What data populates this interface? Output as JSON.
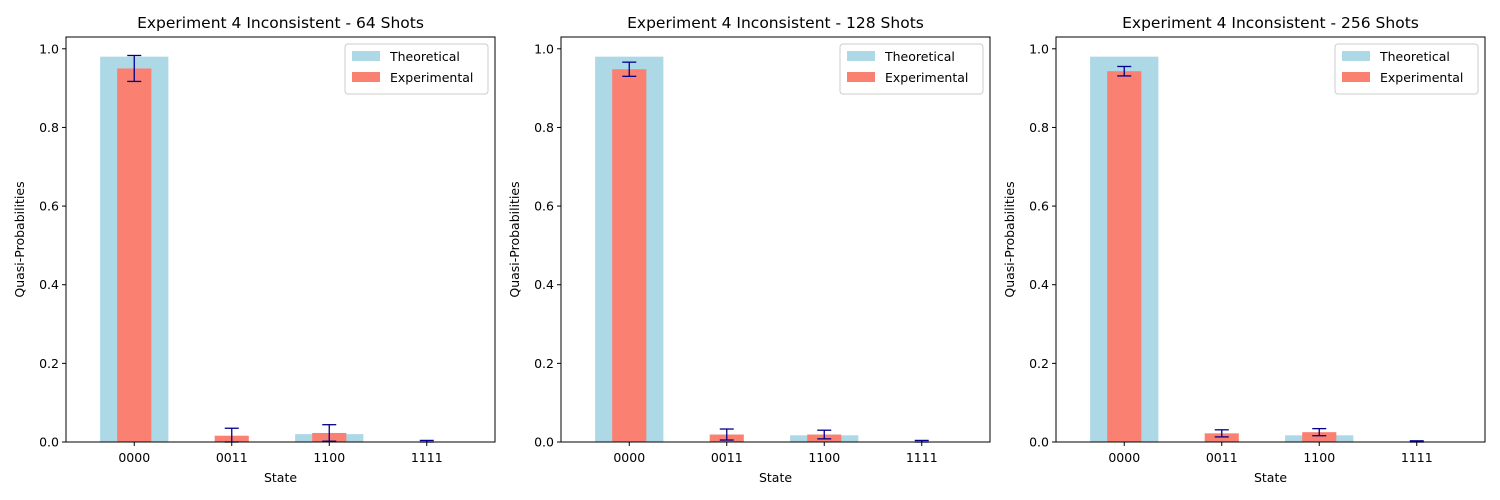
{
  "colors": {
    "theoretical": "#add8e6",
    "experimental": "#fa8072",
    "errorbar": "#00008b"
  },
  "chart_data": [
    {
      "type": "bar",
      "title": "Experiment 4 Inconsistent - 64 Shots",
      "xlabel": "State",
      "ylabel": "Quasi-Probabilities",
      "categories": [
        "0000",
        "0011",
        "1100",
        "1111"
      ],
      "ylim": [
        0,
        1.03
      ],
      "yticks": [
        "0.0",
        "0.2",
        "0.4",
        "0.6",
        "0.8",
        "1.0"
      ],
      "legend_position": "top-right",
      "grid": false,
      "series": [
        {
          "name": "Theoretical",
          "values": [
            0.98,
            0.0,
            0.02,
            0.0
          ]
        },
        {
          "name": "Experimental",
          "values": [
            0.95,
            0.016,
            0.023,
            0.001
          ],
          "errors": [
            0.033,
            0.019,
            0.021,
            0.003
          ]
        }
      ]
    },
    {
      "type": "bar",
      "title": "Experiment 4 Inconsistent - 128 Shots",
      "xlabel": "State",
      "ylabel": "Quasi-Probabilities",
      "categories": [
        "0000",
        "0011",
        "1100",
        "1111"
      ],
      "ylim": [
        0,
        1.03
      ],
      "yticks": [
        "0.0",
        "0.2",
        "0.4",
        "0.6",
        "0.8",
        "1.0"
      ],
      "legend_position": "top-right",
      "grid": false,
      "series": [
        {
          "name": "Theoretical",
          "values": [
            0.98,
            0.0,
            0.017,
            0.0
          ]
        },
        {
          "name": "Experimental",
          "values": [
            0.948,
            0.019,
            0.019,
            0.001
          ],
          "errors": [
            0.018,
            0.014,
            0.011,
            0.003
          ]
        }
      ]
    },
    {
      "type": "bar",
      "title": "Experiment 4 Inconsistent - 256 Shots",
      "xlabel": "State",
      "ylabel": "Quasi-Probabilities",
      "categories": [
        "0000",
        "0011",
        "1100",
        "1111"
      ],
      "ylim": [
        0,
        1.03
      ],
      "yticks": [
        "0.0",
        "0.2",
        "0.4",
        "0.6",
        "0.8",
        "1.0"
      ],
      "legend_position": "top-right",
      "grid": false,
      "series": [
        {
          "name": "Theoretical",
          "values": [
            0.98,
            0.0,
            0.017,
            0.0
          ]
        },
        {
          "name": "Experimental",
          "values": [
            0.943,
            0.022,
            0.025,
            0.001
          ],
          "errors": [
            0.012,
            0.009,
            0.009,
            0.002
          ]
        }
      ]
    }
  ]
}
